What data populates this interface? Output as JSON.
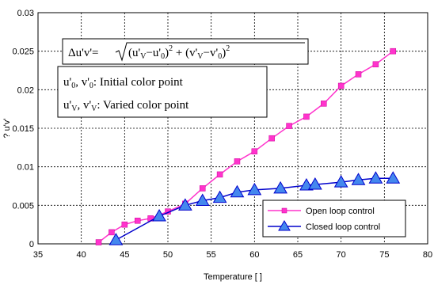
{
  "chart_data": {
    "type": "line",
    "xlabel": "Temperature [   ]",
    "ylabel": "? u'v'",
    "xlim": [
      35,
      80
    ],
    "ylim": [
      0,
      0.03
    ],
    "x_ticks": [
      "35",
      "40",
      "45",
      "50",
      "55",
      "60",
      "65",
      "70",
      "75",
      "80"
    ],
    "y_ticks": [
      "0",
      "0.005",
      "0.01",
      "0.015",
      "0.02",
      "0.025",
      "0.03"
    ],
    "grid": true,
    "legend_position": "bottom-right",
    "series": [
      {
        "name": "Open loop control",
        "color": "#ff33cc",
        "marker": "square",
        "x": [
          42,
          43.5,
          45,
          46.5,
          48,
          50,
          52,
          54,
          56,
          58,
          60,
          62,
          64,
          66,
          68,
          70,
          72,
          74,
          76
        ],
        "y": [
          0.0002,
          0.0015,
          0.0025,
          0.003,
          0.0033,
          0.0042,
          0.0052,
          0.0072,
          0.009,
          0.0107,
          0.012,
          0.0137,
          0.0153,
          0.0165,
          0.0182,
          0.0205,
          0.022,
          0.0233,
          0.025
        ]
      },
      {
        "name": "Closed loop control",
        "color": "#0000cc",
        "marker": "triangle",
        "x": [
          44,
          49,
          52,
          54,
          56,
          58,
          60,
          63,
          66,
          67,
          70,
          72,
          74,
          76
        ],
        "y": [
          0.0005,
          0.0036,
          0.005,
          0.0056,
          0.006,
          0.0067,
          0.007,
          0.0072,
          0.0076,
          0.0077,
          0.008,
          0.0083,
          0.0085,
          0.0085
        ]
      }
    ],
    "annotations": {
      "formula_lhs": "Δu'v'=",
      "formula_rhs": "(u'",
      "formula_initial": "u'₀, v'₀: Initial color point",
      "formula_varied": "u'ᵥ, v'ᵥ: Varied color point"
    }
  }
}
